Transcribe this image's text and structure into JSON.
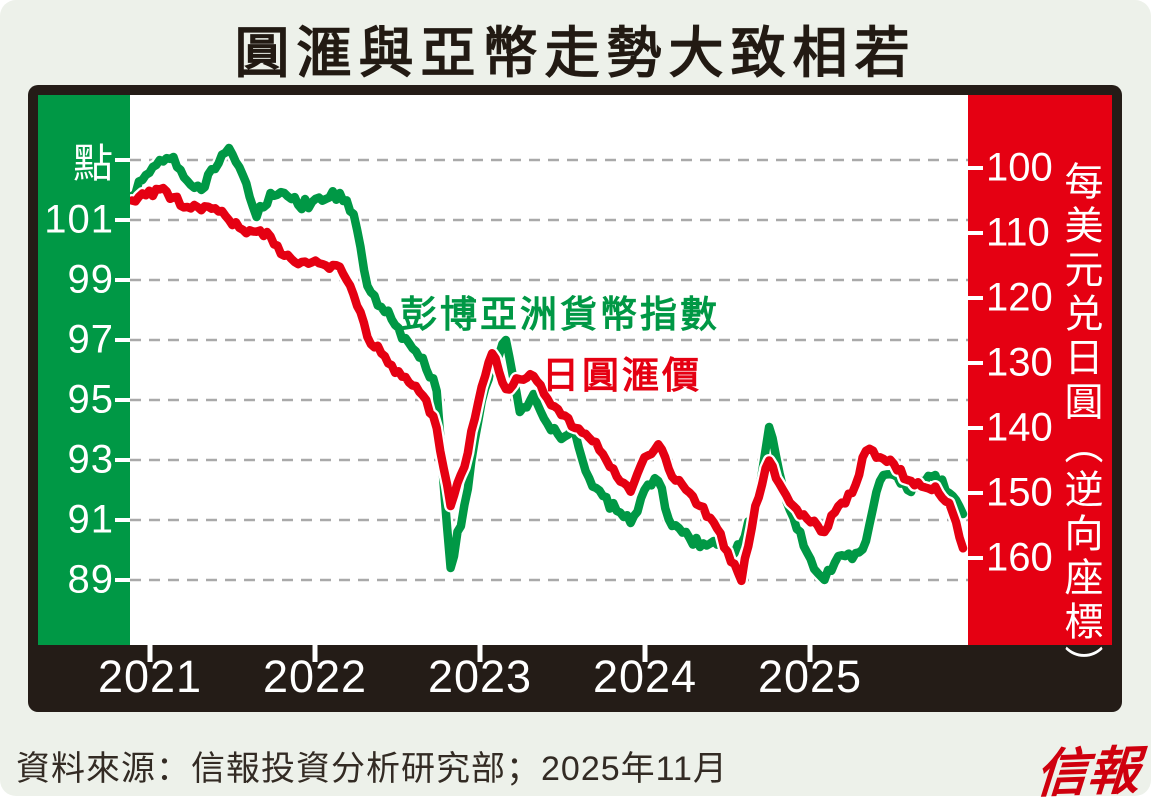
{
  "page": {
    "title": "圓滙與亞幣走勢大致相若",
    "source": "資料來源：信報投資分析研究部；2025年11月",
    "logo": "信報"
  },
  "colors": {
    "background": "#edf1ea",
    "frame": "#241c17",
    "green": "#009845",
    "red": "#e50012",
    "grid": "#a9a9a9",
    "plot_bg": "#ffffff",
    "title_text": "#221a13",
    "source_text": "#332b24",
    "logo_red": "#cf000e"
  },
  "legend": {
    "series1": "彭博亞洲貨幣指數",
    "series2": "日圓滙價"
  },
  "chart_data": {
    "type": "line",
    "title": "圓滙與亞幣走勢大致相若",
    "grid": "horizontal dashed",
    "legend_position": "inside center",
    "x_tick_labels": [
      "2021",
      "2022",
      "2023",
      "2024",
      "2025"
    ],
    "left_axis": {
      "unit_label": "點",
      "tick_labels": [
        "點",
        "101",
        "99",
        "97",
        "95",
        "93",
        "91",
        "89"
      ],
      "tick_values": [
        103,
        101,
        99,
        97,
        95,
        93,
        91,
        89
      ],
      "range_visible": [
        86.7,
        105.2
      ],
      "color": "#009845"
    },
    "right_axis": {
      "title": "每美元兑日圓（逆向座標）",
      "tick_labels": [
        "100",
        "110",
        "120",
        "130",
        "140",
        "150",
        "160"
      ],
      "tick_values": [
        100,
        110,
        120,
        130,
        140,
        150,
        160
      ],
      "range_visible": [
        88.8,
        173.4
      ],
      "inverted": true,
      "color": "#e50012"
    },
    "months": [
      "2020-11",
      "2020-12",
      "2021-01",
      "2021-02",
      "2021-03",
      "2021-04",
      "2021-05",
      "2021-06",
      "2021-07",
      "2021-08",
      "2021-09",
      "2021-10",
      "2021-11",
      "2021-12",
      "2022-01",
      "2022-02",
      "2022-03",
      "2022-04",
      "2022-05",
      "2022-06",
      "2022-07",
      "2022-08",
      "2022-09",
      "2022-10",
      "2022-11",
      "2022-12",
      "2023-01",
      "2023-02",
      "2023-03",
      "2023-04",
      "2023-05",
      "2023-06",
      "2023-07",
      "2023-08",
      "2023-09",
      "2023-10",
      "2023-11",
      "2023-12",
      "2024-01",
      "2024-02",
      "2024-03",
      "2024-04",
      "2024-05",
      "2024-06",
      "2024-07",
      "2024-08",
      "2024-09",
      "2024-10",
      "2024-11",
      "2024-12",
      "2025-01",
      "2025-02",
      "2025-03",
      "2025-04",
      "2025-05",
      "2025-06",
      "2025-07",
      "2025-08",
      "2025-09",
      "2025-10",
      "2025-11"
    ],
    "series": [
      {
        "name": "彭博亞洲貨幣指數",
        "axis": "left",
        "unit": "點",
        "color": "#009845",
        "values": [
          101.8,
          102.5,
          103.0,
          103.1,
          102.3,
          102.0,
          102.7,
          103.4,
          102.5,
          101.1,
          101.9,
          101.9,
          101.5,
          101.6,
          101.7,
          101.9,
          101.2,
          98.8,
          98.1,
          97.5,
          96.9,
          96.4,
          95.3,
          89.4,
          91.5,
          94.3,
          96.3,
          97.0,
          94.6,
          95.2,
          94.2,
          93.7,
          93.9,
          92.4,
          91.8,
          91.3,
          90.9,
          92.0,
          92.3,
          90.8,
          90.6,
          90.1,
          90.3,
          89.9,
          90.2,
          91.4,
          94.1,
          92.1,
          90.7,
          89.7,
          89.0,
          89.8,
          89.7,
          90.3,
          92.3,
          92.5,
          92.0,
          92.3,
          92.5,
          91.9,
          91.2
        ]
      },
      {
        "name": "日圓滙價",
        "axis": "right",
        "unit": "每美元兑日圓",
        "color": "#e50012",
        "values": [
          105.0,
          104.2,
          103.3,
          104.5,
          106.0,
          106.5,
          106.2,
          108.0,
          109.5,
          109.8,
          110.5,
          113.5,
          114.8,
          114.5,
          115.0,
          115.2,
          119.5,
          126.0,
          128.5,
          131.5,
          133.0,
          135.0,
          140.0,
          152.0,
          146.0,
          136.0,
          128.5,
          134.0,
          132.5,
          132.0,
          135.5,
          138.0,
          140.0,
          141.5,
          144.0,
          147.5,
          149.8,
          144.5,
          142.5,
          147.5,
          149.5,
          152.0,
          154.5,
          159.0,
          163.5,
          152.0,
          145.0,
          149.5,
          152.5,
          154.5,
          156.0,
          152.0,
          150.0,
          143.5,
          144.5,
          145.5,
          148.0,
          149.0,
          149.0,
          151.5,
          158.5
        ]
      }
    ]
  }
}
